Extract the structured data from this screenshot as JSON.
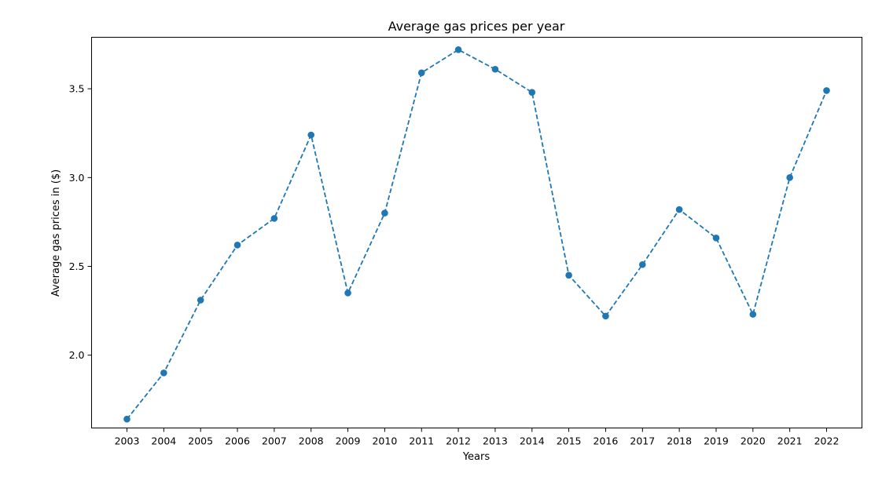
{
  "chart_data": {
    "type": "line",
    "title": "Average gas prices per year",
    "xlabel": "Years",
    "ylabel": "Average gas prices in ($)",
    "categories": [
      "2003",
      "2004",
      "2005",
      "2006",
      "2007",
      "2008",
      "2009",
      "2010",
      "2011",
      "2012",
      "2013",
      "2014",
      "2015",
      "2016",
      "2017",
      "2018",
      "2019",
      "2020",
      "2021",
      "2022"
    ],
    "series": [
      {
        "values": [
          1.64,
          1.9,
          2.31,
          2.62,
          2.77,
          3.24,
          2.35,
          2.8,
          3.59,
          3.72,
          3.61,
          3.48,
          2.45,
          2.22,
          2.51,
          2.82,
          2.66,
          2.23,
          3.0,
          3.49
        ]
      }
    ],
    "yticks": [
      2.0,
      2.5,
      3.0,
      3.5
    ],
    "ytick_labels": [
      "2.0",
      "2.5",
      "3.0",
      "3.5"
    ],
    "ylim": [
      1.59,
      3.79
    ],
    "line_style": "dashed",
    "marker": "circle",
    "color": "#1f77b4",
    "grid": false
  }
}
